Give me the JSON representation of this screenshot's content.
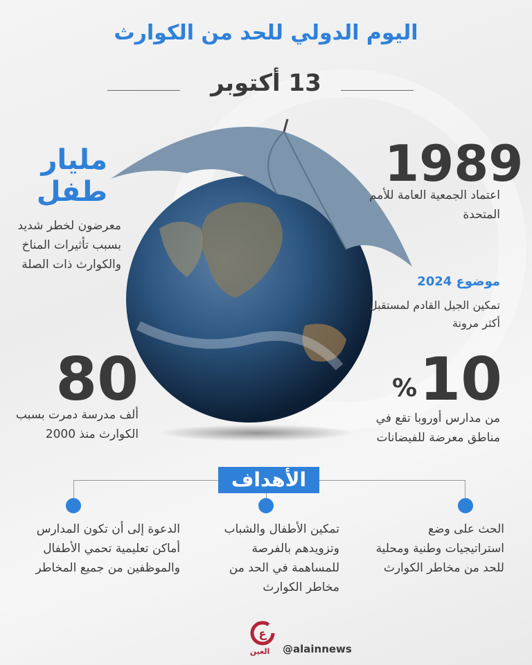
{
  "header": {
    "title": "اليوم الدولي للحد من الكوارث",
    "date": "13 أكتوبر"
  },
  "stats": {
    "billion_children": {
      "headline_1": "مليار",
      "headline_2": "طفل",
      "text": "معرضون لخطر شديد بسبب تأثيرات المناخ والكوارث ذات الصلة"
    },
    "year": {
      "number": "1989",
      "text": "اعتماد الجمعية العامة للأمم المتحدة"
    },
    "theme": {
      "label": "موضوع 2024",
      "text": "تمكين الجيل القادم لمستقبل أكثر مرونة"
    },
    "schools_destroyed": {
      "number": "80",
      "text": "ألف مدرسة دمرت بسبب الكوارث منذ 2000"
    },
    "europe_schools": {
      "number": "10",
      "percent": "%",
      "text": "من مدارس أوروبا تقع في مناطق معرضة للفيضانات"
    }
  },
  "goals": {
    "title": "الأهداف",
    "items": [
      {
        "text": "الحث على وضع استراتيجيات وطنية ومحلية للحد من مخاطر الكوارث"
      },
      {
        "text": "تمكين الأطفال والشباب وتزويدهم بالفرصة للمساهمة في الحد من مخاطر الكوارث"
      },
      {
        "text": "الدعوة إلى أن تكون المدارس أماكن تعليمية تحمي الأطفال والموظفين من جميع المخاطر"
      }
    ]
  },
  "footer": {
    "logo_text": "العين",
    "handle": "@alainnews"
  },
  "colors": {
    "accent": "#2f80d9",
    "text": "#3a3a3a",
    "logo": "#b3243a"
  }
}
